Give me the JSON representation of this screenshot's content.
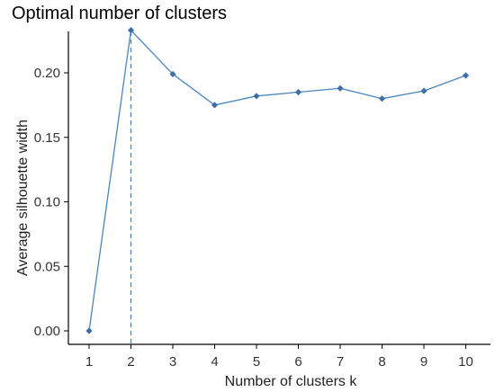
{
  "chart_data": {
    "type": "line",
    "title": "Optimal number of clusters",
    "xlabel": "Number of clusters k",
    "ylabel": "Average silhouette width",
    "x": [
      1,
      2,
      3,
      4,
      5,
      6,
      7,
      8,
      9,
      10
    ],
    "x_tick_labels": [
      "1",
      "2",
      "3",
      "4",
      "5",
      "6",
      "7",
      "8",
      "9",
      "10"
    ],
    "y_ticks": [
      "0.00",
      "0.05",
      "0.10",
      "0.15",
      "0.20"
    ],
    "ylim": [
      0,
      0.235
    ],
    "series": [
      {
        "values": [
          0.0,
          0.233,
          0.199,
          0.175,
          0.182,
          0.185,
          0.188,
          0.18,
          0.186,
          0.198
        ]
      }
    ],
    "optimal_k": 2,
    "grid": false,
    "colors": {
      "line": "#4a85bd",
      "marker": "#3d6fa8",
      "vline": "#4a85bd"
    }
  }
}
